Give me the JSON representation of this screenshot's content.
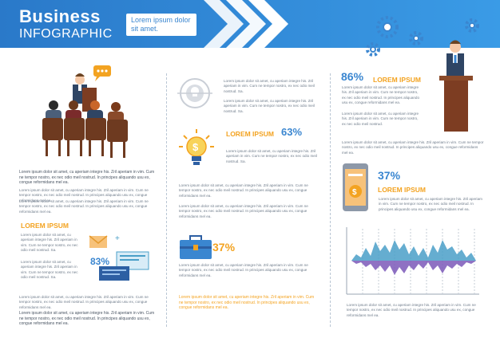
{
  "header": {
    "title": "Business",
    "subtitle": "INFOGRAPHIC",
    "box_text": "Lorem ipsum dolor sit amet."
  },
  "lorem": {
    "short": "Lorem ipsum dolor sit amet, cu aperiam integre his. Zril aperiam in vim. Cum ne tempor nostro, ex nec odio meil nostrud.",
    "long": "Lorem ipsum dolor sit amet, cu aperiam integre his. Zril aperiam in vim. Cum ne tempor nostro, ex nec odio meil nostrud. In principes aliquando usu ex, congue reformidans mel ea.",
    "two_line": "Lorem ipsum dolor sit amet, cu aperiam integre his. Zril aperiam in vim. Cum ne tempor nostro, ex nec odio meil nostrud. Sa.",
    "tail": "Lorem ipsum dolor sit amet, cu aperiam integre his. Zril aperiam in vim. Cum ne tempor nostro, ex nec odio meil nostrud."
  },
  "col1": {
    "intro": "Lorem ipsum dolor sit amet, cu aperiam integre his. Zril aperiam in vim. Cum ne tempor nostro, ex nec odio meil nostrud. In principes aliquando usu ex, congue reformidans mel ea.",
    "heading": "LOREM IPSUM",
    "pct": "83%"
  },
  "col2": {
    "heading1": "LOREM IPSUM",
    "pct1": "63%",
    "pct2": "37%",
    "orange_text": "Lorem ipsum dolor sit amet, cu aperiam integre his. Zril aperiam in vim. Cum ne tempor nostro, ex nec odio meil nostrud. In principes aliquando usu ex, congue reformidans mel ea."
  },
  "col3": {
    "pct1": "86%",
    "heading1": "LOREM IPSUM",
    "pct2": "37%",
    "heading2": "LOREM IPSUM",
    "text1": "Lorem ipsum dolor sit amet, cu aperiam integre his. Zril aperiam in vim. Cum ne tempor nostro, ex nec odio meil nostrud. In principes aliquando usu ex, congue reformidans mel ea.",
    "text2": "Lorem ipsum dolor sit amet, cu aperiam integre his. Zril aperiam in vim. Cum ne tempor nostro, ex nec odio meil nostrud. In principes aliquando usu ex, congue reformidans mel ea."
  },
  "colors": {
    "blue": "#3a86d0",
    "orange": "#f3a321",
    "purple": "#7b58b8",
    "teal": "#4a9fc8"
  }
}
